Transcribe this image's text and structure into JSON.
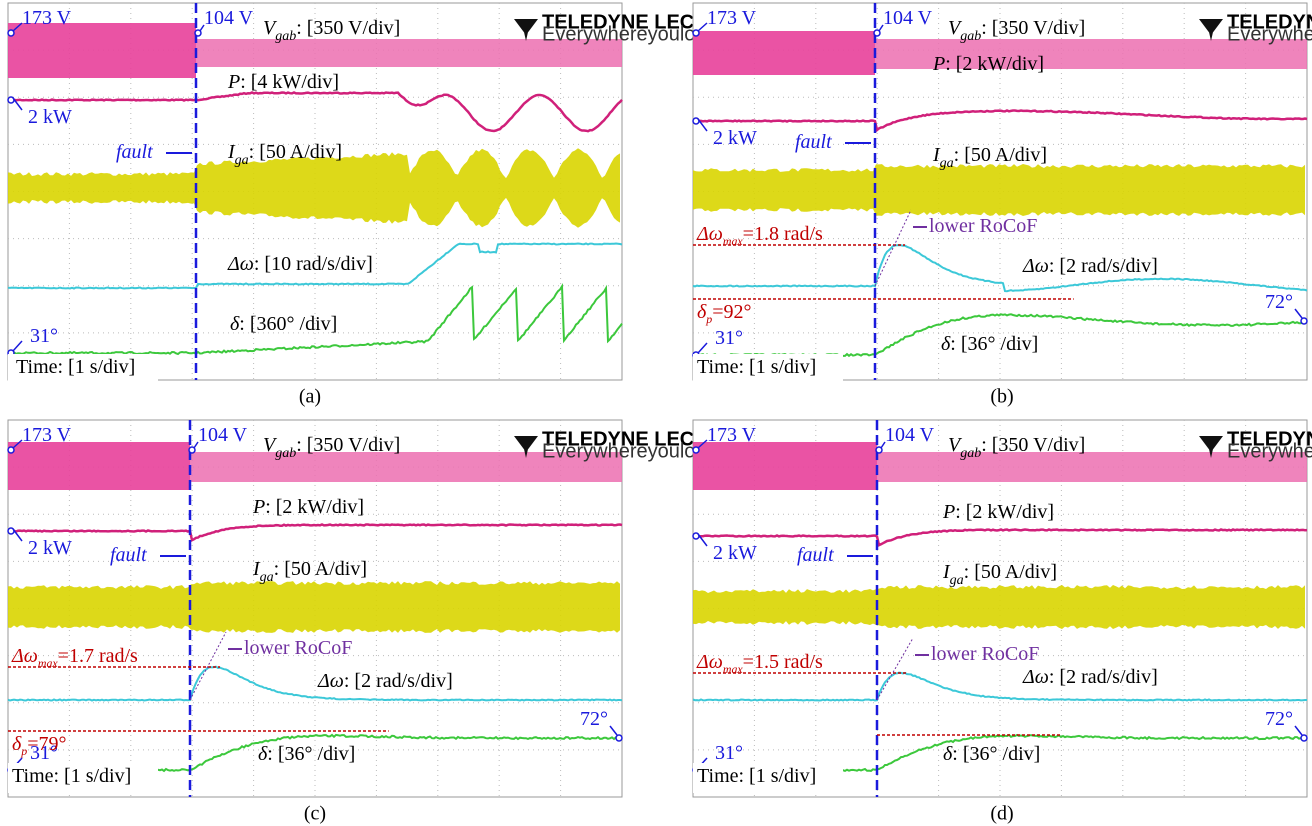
{
  "panels": [
    {
      "label": "(a)",
      "v_start": "173 V",
      "v_fault": "104 V",
      "logo": "TELEDYNE LECROY",
      "tagline": "Everywhereyoulook",
      "vgab": {
        "symbol": "V",
        "sub": "gab",
        "scale": ": [350 V/div]"
      },
      "p": {
        "symbol": "P",
        "scale": ": [4 kW/div]"
      },
      "p_start": "2 kW",
      "fault": "fault",
      "iga": {
        "symbol": "I",
        "sub": "ga",
        "scale": ": [50 A/div]"
      },
      "dw": {
        "symbol": "Δω",
        "scale": ": [10 rad/s/div]"
      },
      "delta": {
        "symbol": "δ",
        "scale": ": [360° /div]"
      },
      "delta_start": "31°",
      "time": "Time: [1 s/div]"
    },
    {
      "label": "(b)",
      "v_start": "173 V",
      "v_fault": "104 V",
      "logo": "TELEDYNE LECROY",
      "tagline": "Everywhereyoulook",
      "vgab": {
        "symbol": "V",
        "sub": "gab",
        "scale": ": [350 V/div]"
      },
      "p": {
        "symbol": "P",
        "scale": ": [2 kW/div]"
      },
      "p_start": "2 kW",
      "fault": "fault",
      "iga": {
        "symbol": "I",
        "sub": "ga",
        "scale": ": [50 A/div]"
      },
      "dw": {
        "symbol": "Δω",
        "scale": ": [2 rad/s/div]"
      },
      "delta": {
        "symbol": "δ",
        "scale": ": [36° /div]"
      },
      "delta_start": "31°",
      "time": "Time: [1 s/div]",
      "rocof": "lower RoCoF",
      "dw_max": {
        "symbol": "Δω",
        "sub": "max",
        "value": "=1.8 rad/s"
      },
      "delta_p": {
        "symbol": "δ",
        "sub": "p",
        "value": "=92°"
      },
      "delta_end": "72°"
    },
    {
      "label": "(c)",
      "v_start": "173 V",
      "v_fault": "104 V",
      "logo": "TELEDYNE LECROY",
      "tagline": "Everywhereyoulook",
      "vgab": {
        "symbol": "V",
        "sub": "gab",
        "scale": ": [350 V/div]"
      },
      "p": {
        "symbol": "P",
        "scale": ": [2 kW/div]"
      },
      "p_start": "2 kW",
      "fault": "fault",
      "iga": {
        "symbol": "I",
        "sub": "ga",
        "scale": ": [50 A/div]"
      },
      "dw": {
        "symbol": "Δω",
        "scale": ": [2 rad/s/div]"
      },
      "delta": {
        "symbol": "δ",
        "scale": ": [36° /div]"
      },
      "delta_start": "31°",
      "time": "Time: [1 s/div]",
      "rocof": "lower RoCoF",
      "dw_max": {
        "symbol": "Δω",
        "sub": "max",
        "value": "=1.7 rad/s"
      },
      "delta_p": {
        "symbol": "δ",
        "sub": "p",
        "value": "=79°"
      },
      "delta_end": "72°"
    },
    {
      "label": "(d)",
      "v_start": "173 V",
      "v_fault": "104 V",
      "logo": "TELEDYNE LECROY",
      "tagline": "Everywhereyoulook",
      "vgab": {
        "symbol": "V",
        "sub": "gab",
        "scale": ": [350 V/div]"
      },
      "p": {
        "symbol": "P",
        "scale": ": [2 kW/div]"
      },
      "p_start": "2 kW",
      "fault": "fault",
      "iga": {
        "symbol": "I",
        "sub": "ga",
        "scale": ": [50 A/div]"
      },
      "dw": {
        "symbol": "Δω",
        "scale": ": [2 rad/s/div]"
      },
      "delta": {
        "symbol": "δ",
        "scale": ": [36° /div]"
      },
      "delta_start": "31°",
      "time": "Time: [1 s/div]",
      "rocof": "lower RoCoF",
      "dw_max": {
        "symbol": "Δω",
        "sub": "max",
        "value": "=1.5 rad/s"
      },
      "delta_end": "72°"
    }
  ]
}
